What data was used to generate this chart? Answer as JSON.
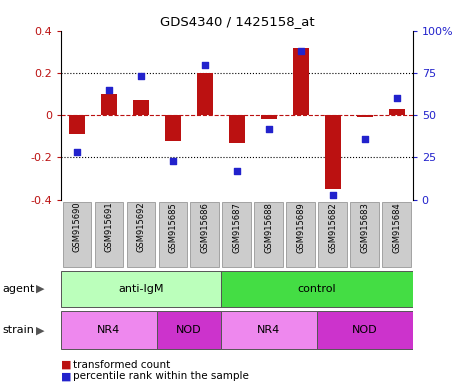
{
  "title": "GDS4340 / 1425158_at",
  "samples": [
    "GSM915690",
    "GSM915691",
    "GSM915692",
    "GSM915685",
    "GSM915686",
    "GSM915687",
    "GSM915688",
    "GSM915689",
    "GSM915682",
    "GSM915683",
    "GSM915684"
  ],
  "bar_values": [
    -0.09,
    0.1,
    0.07,
    -0.12,
    0.2,
    -0.13,
    -0.02,
    0.32,
    -0.35,
    -0.01,
    0.03
  ],
  "dot_values": [
    28,
    65,
    73,
    23,
    80,
    17,
    42,
    88,
    3,
    36,
    60
  ],
  "bar_color": "#bb1111",
  "dot_color": "#2222cc",
  "ylim": [
    -0.4,
    0.4
  ],
  "y2lim": [
    0,
    100
  ],
  "yticks": [
    -0.4,
    -0.2,
    0.0,
    0.2,
    0.4
  ],
  "y2ticks": [
    0,
    25,
    50,
    75,
    100
  ],
  "y2ticklabels": [
    "0",
    "25",
    "50",
    "75",
    "100%"
  ],
  "agent_groups": [
    {
      "label": "anti-IgM",
      "start": 0,
      "end": 5,
      "color": "#bbffbb"
    },
    {
      "label": "control",
      "start": 5,
      "end": 11,
      "color": "#44dd44"
    }
  ],
  "strain_groups": [
    {
      "label": "NR4",
      "start": 0,
      "end": 3,
      "color": "#ee88ee"
    },
    {
      "label": "NOD",
      "start": 3,
      "end": 5,
      "color": "#cc33cc"
    },
    {
      "label": "NR4",
      "start": 5,
      "end": 8,
      "color": "#ee88ee"
    },
    {
      "label": "NOD",
      "start": 8,
      "end": 11,
      "color": "#cc33cc"
    }
  ],
  "legend_bar_label": "transformed count",
  "legend_dot_label": "percentile rank within the sample",
  "agent_label": "agent",
  "strain_label": "strain",
  "plot_bg": "#ffffff",
  "xlabel_bg": "#cccccc",
  "bar_width": 0.5
}
